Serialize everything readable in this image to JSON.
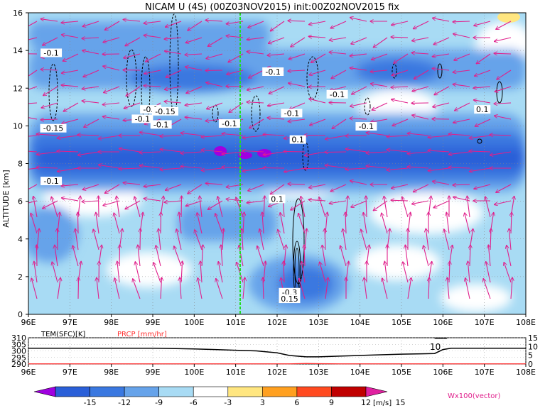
{
  "title": "NICAM U (4S) (00Z03NOV2015) init:00Z02NOV2015 fix",
  "chart_data": [
    {
      "type": "heatmap",
      "title": "NICAM U (4S) (00Z03NOV2015) init:00Z02NOV2015 fix",
      "xlabel": "",
      "ylabel": "ALTITUDE [km]",
      "x_ticks": [
        "96E",
        "97E",
        "98E",
        "99E",
        "100E",
        "101E",
        "102E",
        "103E",
        "104E",
        "105E",
        "106E",
        "107E",
        "108E"
      ],
      "y_ticks": [
        "0",
        "2",
        "4",
        "6",
        "8",
        "10",
        "12",
        "14",
        "16"
      ],
      "xlim": [
        96,
        108
      ],
      "ylim": [
        0,
        16
      ],
      "grid": true,
      "marker_line_lon": 101,
      "contour_labels": [
        {
          "lon": 96.55,
          "alt": 13.8,
          "text": "-0.1"
        },
        {
          "lon": 96.6,
          "alt": 9.8,
          "text": "-0.15"
        },
        {
          "lon": 96.55,
          "alt": 7.0,
          "text": "-0.1"
        },
        {
          "lon": 98.95,
          "alt": 10.8,
          "text": "-0.1"
        },
        {
          "lon": 99.3,
          "alt": 10.7,
          "text": "-0.15"
        },
        {
          "lon": 98.75,
          "alt": 10.3,
          "text": "-0.1"
        },
        {
          "lon": 99.2,
          "alt": 10.0,
          "text": "-0.1"
        },
        {
          "lon": 100.85,
          "alt": 10.05,
          "text": "-0.1"
        },
        {
          "lon": 101.9,
          "alt": 12.8,
          "text": "-0.1"
        },
        {
          "lon": 102.35,
          "alt": 10.6,
          "text": "-0.1"
        },
        {
          "lon": 102.5,
          "alt": 9.2,
          "text": "0.1"
        },
        {
          "lon": 103.45,
          "alt": 11.6,
          "text": "-0.1"
        },
        {
          "lon": 104.15,
          "alt": 9.9,
          "text": "-0.1"
        },
        {
          "lon": 106.95,
          "alt": 10.8,
          "text": "0.1"
        },
        {
          "lon": 102.0,
          "alt": 6.05,
          "text": "0.1"
        },
        {
          "lon": 102.3,
          "alt": 1.1,
          "text": "-0.3"
        },
        {
          "lon": 102.3,
          "alt": 0.75,
          "text": "0.15"
        }
      ],
      "vector_legend": "Wx100(vector)"
    },
    {
      "type": "line",
      "title": "",
      "x": [
        96,
        97,
        98,
        99,
        100,
        100.5,
        101,
        101.5,
        102,
        102.3,
        102.7,
        103.0,
        103.5,
        104.0,
        104.5,
        105.0,
        105.5,
        105.8,
        106.0,
        106.2,
        107,
        108
      ],
      "series": [
        {
          "name": "TEM(SFC)[K]",
          "color": "#000000",
          "values": [
            302,
            302,
            302,
            302,
            301.5,
            301,
            300.5,
            300,
            298.5,
            296.5,
            295.5,
            295.5,
            296,
            296.5,
            297,
            297.5,
            297.8,
            298,
            301,
            302,
            302,
            302
          ]
        },
        {
          "name": "PRCP [mm/hr]",
          "color": "#ff3030",
          "values": [
            0.1,
            0.1,
            0.1,
            0.1,
            0.1,
            0.1,
            0.1,
            0.1,
            0.1,
            0.1,
            0.3,
            0.2,
            0.1,
            0.1,
            0.1,
            0.1,
            0.1,
            0.1,
            0.1,
            0.1,
            0.1,
            0.1
          ]
        }
      ],
      "x_ticks": [
        "96E",
        "97E",
        "98E",
        "99E",
        "100E",
        "101E",
        "102E",
        "103E",
        "104E",
        "105E",
        "106E",
        "107E",
        "108E"
      ],
      "y_left_ticks": [
        "290",
        "295",
        "300",
        "305",
        "310"
      ],
      "y_right_ticks": [
        "0",
        "5",
        "10",
        "15"
      ],
      "ylim_left": [
        290,
        310
      ],
      "ylim_right": [
        0,
        15
      ],
      "annotation": "10"
    }
  ],
  "colorbar": {
    "ticks": [
      "-15",
      "-12",
      "-9",
      "-6",
      "-3",
      "3",
      "6",
      "9",
      "12",
      "15"
    ],
    "colors": [
      "#a000e0",
      "#2a5fd8",
      "#3a78e0",
      "#66a3ea",
      "#a8dbf4",
      "#ffffff",
      "#ffe680",
      "#ffa020",
      "#ff4a20",
      "#c00000",
      "#e020a0"
    ],
    "unit": "[m/s]"
  },
  "palette": {
    "vector": "#e0208c",
    "green_line": "#22dd22",
    "sfc_temp": "#000000",
    "precip": "#ff3030"
  }
}
